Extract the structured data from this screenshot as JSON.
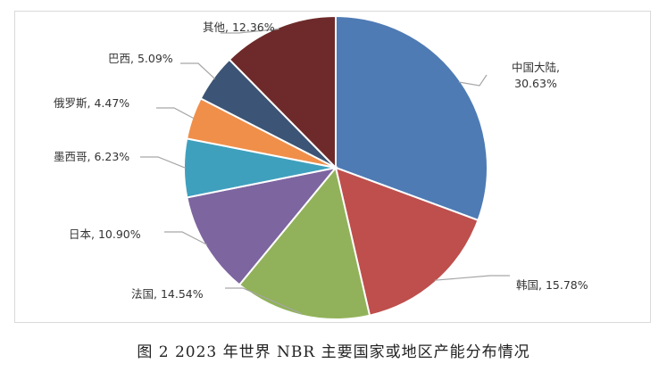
{
  "chart_data": {
    "type": "pie",
    "slices": [
      {
        "name": "中国大陆",
        "value": 30.63,
        "label": "30.63%",
        "color": "#4E7BB4"
      },
      {
        "name": "韩国",
        "value": 15.78,
        "label": "15.78%",
        "color": "#BE4F4C"
      },
      {
        "name": "法国",
        "value": 14.54,
        "label": "14.54%",
        "color": "#91B25A"
      },
      {
        "name": "日本",
        "value": 10.9,
        "label": "10.90%",
        "color": "#7D65A0"
      },
      {
        "name": "墨西哥",
        "value": 6.23,
        "label": "6.23%",
        "color": "#3FA0BE"
      },
      {
        "name": "俄罗斯",
        "value": 4.47,
        "label": "4.47%",
        "color": "#F08F4A"
      },
      {
        "name": "巴西",
        "value": 5.09,
        "label": "5.09%",
        "color": "#3C5475"
      },
      {
        "name": "其他",
        "value": 12.36,
        "label": "12.36%",
        "color": "#6E2A2A"
      }
    ],
    "start_angle": "12 o'clock",
    "direction": "clockwise",
    "legend": "none",
    "data_labels": "outside with leader lines"
  },
  "caption": "图 2  2023 年世界 NBR 主要国家或地区产能分布情况"
}
